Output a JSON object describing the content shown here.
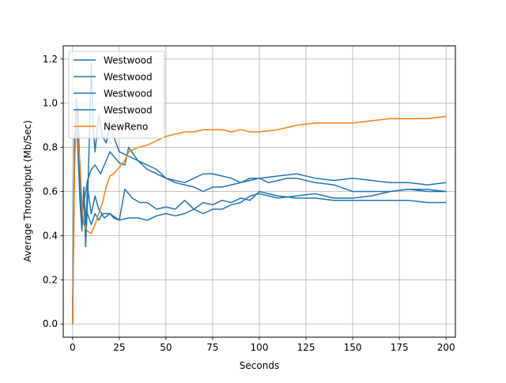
{
  "chart_data": {
    "type": "line",
    "title": "",
    "xlabel": "Seconds",
    "ylabel": "Average Throughput (Mb/Sec)",
    "xlim": [
      -5,
      205
    ],
    "ylim": [
      -0.06,
      1.26
    ],
    "xticks": [
      0,
      25,
      50,
      75,
      100,
      125,
      150,
      175,
      200
    ],
    "yticks": [
      0.0,
      0.2,
      0.4,
      0.6,
      0.8,
      1.0,
      1.2
    ],
    "xtick_labels": [
      "0",
      "25",
      "50",
      "75",
      "100",
      "125",
      "150",
      "175",
      "200"
    ],
    "ytick_labels": [
      "0.0",
      "0.2",
      "0.4",
      "0.6",
      "0.8",
      "1.0",
      "1.2"
    ],
    "grid": true,
    "legend_position": "top-left",
    "series": [
      {
        "name": "Westwood",
        "color": "#1f77b4",
        "points": [
          [
            0,
            0.0
          ],
          [
            0.5,
            0.35
          ],
          [
            1,
            0.7
          ],
          [
            2,
            1.0
          ],
          [
            3,
            0.9
          ],
          [
            4,
            0.68
          ],
          [
            5,
            0.43
          ],
          [
            6,
            0.6
          ],
          [
            7,
            0.45
          ],
          [
            8,
            0.62
          ],
          [
            10,
            0.5
          ],
          [
            12,
            0.58
          ],
          [
            14,
            0.52
          ],
          [
            17,
            0.48
          ],
          [
            20,
            0.5
          ],
          [
            25,
            0.47
          ],
          [
            28,
            0.61
          ],
          [
            32,
            0.57
          ],
          [
            36,
            0.55
          ],
          [
            40,
            0.55
          ],
          [
            45,
            0.52
          ],
          [
            50,
            0.53
          ],
          [
            55,
            0.52
          ],
          [
            60,
            0.56
          ],
          [
            65,
            0.52
          ],
          [
            70,
            0.55
          ],
          [
            75,
            0.54
          ],
          [
            80,
            0.56
          ],
          [
            85,
            0.55
          ],
          [
            90,
            0.57
          ],
          [
            95,
            0.56
          ],
          [
            100,
            0.6
          ],
          [
            110,
            0.58
          ],
          [
            120,
            0.57
          ],
          [
            130,
            0.57
          ],
          [
            140,
            0.56
          ],
          [
            150,
            0.56
          ],
          [
            160,
            0.56
          ],
          [
            170,
            0.56
          ],
          [
            180,
            0.56
          ],
          [
            190,
            0.55
          ],
          [
            200,
            0.55
          ]
        ]
      },
      {
        "name": "Westwood",
        "color": "#1f77b4",
        "points": [
          [
            0,
            0.0
          ],
          [
            0.5,
            0.4
          ],
          [
            1,
            0.8
          ],
          [
            2,
            0.95
          ],
          [
            3,
            0.75
          ],
          [
            4,
            0.55
          ],
          [
            5,
            0.42
          ],
          [
            6,
            0.62
          ],
          [
            7,
            0.35
          ],
          [
            8,
            0.55
          ],
          [
            9,
            0.85
          ],
          [
            10,
            1.18
          ],
          [
            11,
            0.9
          ],
          [
            12,
            0.78
          ],
          [
            14,
            0.95
          ],
          [
            16,
            0.85
          ],
          [
            18,
            0.82
          ],
          [
            20,
            0.9
          ],
          [
            22,
            0.85
          ],
          [
            25,
            0.78
          ],
          [
            30,
            0.76
          ],
          [
            35,
            0.74
          ],
          [
            40,
            0.72
          ],
          [
            45,
            0.7
          ],
          [
            50,
            0.66
          ],
          [
            55,
            0.65
          ],
          [
            60,
            0.64
          ],
          [
            65,
            0.66
          ],
          [
            70,
            0.68
          ],
          [
            75,
            0.68
          ],
          [
            80,
            0.67
          ],
          [
            85,
            0.66
          ],
          [
            90,
            0.64
          ],
          [
            95,
            0.66
          ],
          [
            100,
            0.66
          ],
          [
            110,
            0.67
          ],
          [
            120,
            0.68
          ],
          [
            130,
            0.66
          ],
          [
            140,
            0.65
          ],
          [
            150,
            0.66
          ],
          [
            160,
            0.65
          ],
          [
            170,
            0.64
          ],
          [
            180,
            0.64
          ],
          [
            190,
            0.63
          ],
          [
            200,
            0.64
          ]
        ]
      },
      {
        "name": "Westwood",
        "color": "#1f77b4",
        "points": [
          [
            0,
            0.0
          ],
          [
            0.5,
            0.5
          ],
          [
            1,
            0.85
          ],
          [
            2,
            0.9
          ],
          [
            3,
            0.8
          ],
          [
            4,
            0.55
          ],
          [
            5,
            0.45
          ],
          [
            6,
            0.58
          ],
          [
            7,
            0.48
          ],
          [
            8,
            0.5
          ],
          [
            10,
            0.45
          ],
          [
            12,
            0.5
          ],
          [
            14,
            0.47
          ],
          [
            16,
            0.5
          ],
          [
            18,
            0.5
          ],
          [
            20,
            0.5
          ],
          [
            22,
            0.48
          ],
          [
            25,
            0.47
          ],
          [
            30,
            0.48
          ],
          [
            35,
            0.48
          ],
          [
            40,
            0.47
          ],
          [
            45,
            0.49
          ],
          [
            50,
            0.5
          ],
          [
            55,
            0.49
          ],
          [
            60,
            0.5
          ],
          [
            65,
            0.52
          ],
          [
            70,
            0.5
          ],
          [
            75,
            0.52
          ],
          [
            80,
            0.52
          ],
          [
            85,
            0.54
          ],
          [
            90,
            0.55
          ],
          [
            95,
            0.58
          ],
          [
            100,
            0.59
          ],
          [
            105,
            0.58
          ],
          [
            110,
            0.57
          ],
          [
            120,
            0.58
          ],
          [
            130,
            0.59
          ],
          [
            140,
            0.57
          ],
          [
            150,
            0.57
          ],
          [
            160,
            0.58
          ],
          [
            170,
            0.6
          ],
          [
            180,
            0.61
          ],
          [
            190,
            0.61
          ],
          [
            200,
            0.6
          ]
        ]
      },
      {
        "name": "Westwood",
        "color": "#1f77b4",
        "points": [
          [
            0,
            0.0
          ],
          [
            0.5,
            0.45
          ],
          [
            1,
            0.75
          ],
          [
            2,
            1.02
          ],
          [
            3,
            0.95
          ],
          [
            4,
            0.6
          ],
          [
            5,
            0.5
          ],
          [
            6,
            0.55
          ],
          [
            8,
            0.65
          ],
          [
            10,
            0.7
          ],
          [
            12,
            0.72
          ],
          [
            15,
            0.68
          ],
          [
            18,
            0.74
          ],
          [
            20,
            0.78
          ],
          [
            25,
            0.73
          ],
          [
            28,
            0.72
          ],
          [
            30,
            0.8
          ],
          [
            35,
            0.74
          ],
          [
            40,
            0.7
          ],
          [
            45,
            0.68
          ],
          [
            50,
            0.66
          ],
          [
            55,
            0.64
          ],
          [
            60,
            0.63
          ],
          [
            65,
            0.62
          ],
          [
            70,
            0.6
          ],
          [
            75,
            0.62
          ],
          [
            80,
            0.62
          ],
          [
            85,
            0.63
          ],
          [
            90,
            0.64
          ],
          [
            95,
            0.65
          ],
          [
            100,
            0.66
          ],
          [
            105,
            0.64
          ],
          [
            110,
            0.65
          ],
          [
            115,
            0.66
          ],
          [
            120,
            0.66
          ],
          [
            125,
            0.65
          ],
          [
            130,
            0.64
          ],
          [
            140,
            0.63
          ],
          [
            150,
            0.6
          ],
          [
            160,
            0.6
          ],
          [
            170,
            0.6
          ],
          [
            180,
            0.61
          ],
          [
            190,
            0.6
          ],
          [
            200,
            0.6
          ]
        ]
      },
      {
        "name": "NewReno",
        "color": "#ff7f0e",
        "points": [
          [
            0,
            0.0
          ],
          [
            0.5,
            0.3
          ],
          [
            1,
            0.7
          ],
          [
            2,
            0.95
          ],
          [
            3,
            0.82
          ],
          [
            4,
            0.72
          ],
          [
            5,
            0.55
          ],
          [
            6,
            0.45
          ],
          [
            8,
            0.42
          ],
          [
            10,
            0.41
          ],
          [
            12,
            0.45
          ],
          [
            14,
            0.5
          ],
          [
            16,
            0.55
          ],
          [
            18,
            0.62
          ],
          [
            20,
            0.67
          ],
          [
            22,
            0.68
          ],
          [
            25,
            0.71
          ],
          [
            28,
            0.74
          ],
          [
            30,
            0.78
          ],
          [
            35,
            0.8
          ],
          [
            40,
            0.81
          ],
          [
            45,
            0.83
          ],
          [
            50,
            0.85
          ],
          [
            55,
            0.86
          ],
          [
            60,
            0.87
          ],
          [
            65,
            0.87
          ],
          [
            70,
            0.88
          ],
          [
            75,
            0.88
          ],
          [
            80,
            0.88
          ],
          [
            85,
            0.87
          ],
          [
            90,
            0.88
          ],
          [
            95,
            0.87
          ],
          [
            100,
            0.87
          ],
          [
            110,
            0.88
          ],
          [
            120,
            0.9
          ],
          [
            130,
            0.91
          ],
          [
            140,
            0.91
          ],
          [
            150,
            0.91
          ],
          [
            160,
            0.92
          ],
          [
            170,
            0.93
          ],
          [
            180,
            0.93
          ],
          [
            190,
            0.93
          ],
          [
            200,
            0.94
          ]
        ]
      }
    ]
  }
}
